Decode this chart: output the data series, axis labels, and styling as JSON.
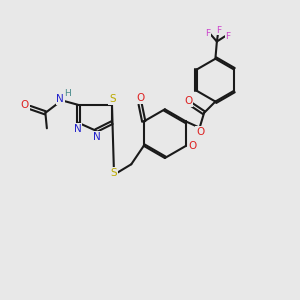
{
  "bg_color": "#e8e8e8",
  "bond_color": "#1a1a1a",
  "bond_width": 1.5,
  "fs": 7.0,
  "figsize": [
    3.0,
    3.0
  ],
  "dpi": 100,
  "colors": {
    "O": "#dd2222",
    "N": "#2222cc",
    "S": "#bbaa00",
    "F": "#cc44cc",
    "H": "#448888",
    "C": "#1a1a1a"
  }
}
